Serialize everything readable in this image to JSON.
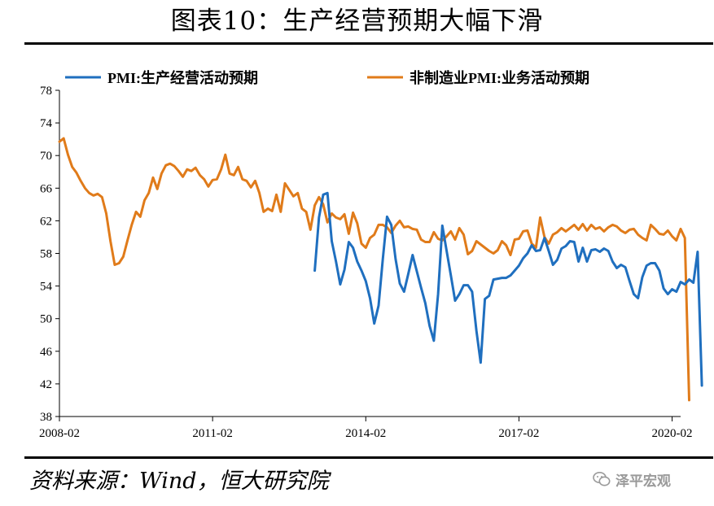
{
  "title": "图表10：生产经营预期大幅下滑",
  "source": "资料来源：Wind，恒大研究院",
  "watermark": "泽平宏观",
  "chart_data": {
    "type": "line",
    "title": "图表10：生产经营预期大幅下滑",
    "xlabel": "",
    "ylabel": "",
    "ylim": [
      38,
      78
    ],
    "yticks": [
      38,
      42,
      46,
      50,
      54,
      58,
      62,
      66,
      70,
      74,
      78
    ],
    "xtick_labels": [
      "2008-02",
      "2011-02",
      "2014-02",
      "2017-02",
      "2020-02"
    ],
    "xtick_index": [
      0,
      36,
      72,
      108,
      144
    ],
    "x_range_months": [
      0,
      146
    ],
    "legend_position": "top",
    "grid": false,
    "series": [
      {
        "name": "PMI:生产经营活动预期",
        "color": "#1f6fbf",
        "start_index": 60,
        "values": [
          55.9,
          62.4,
          65.2,
          65.4,
          59.5,
          57.0,
          54.2,
          56.0,
          59.4,
          58.7,
          57.0,
          55.9,
          54.6,
          52.5,
          49.4,
          51.6,
          57.3,
          62.5,
          61.5,
          57.3,
          54.3,
          53.3,
          55.5,
          57.8,
          55.8,
          53.8,
          51.9,
          49.1,
          47.3,
          53.0,
          61.4,
          58.3,
          55.3,
          52.2,
          53.0,
          54.1,
          54.1,
          53.3,
          48.5,
          44.6,
          52.4,
          52.8,
          54.8,
          54.9,
          55.0,
          55.0,
          55.3,
          55.9,
          56.5,
          57.4,
          58.0,
          59.0,
          58.3,
          58.4,
          59.9,
          58.3,
          56.6,
          57.2,
          58.6,
          58.9,
          59.5,
          59.4,
          57.0,
          58.7,
          57.0,
          58.4,
          58.5,
          58.2,
          58.6,
          58.3,
          57.0,
          56.2,
          56.6,
          56.3,
          54.6,
          53.0,
          52.5,
          55.1,
          56.5,
          56.8,
          56.8,
          55.9,
          53.7,
          53.0,
          53.6,
          53.3,
          54.5,
          54.2,
          54.8,
          54.4,
          58.2,
          41.8
        ]
      },
      {
        "name": "非制造业PMI:业务活动预期",
        "color": "#e07b1a",
        "start_index": 0,
        "values": [
          71.7,
          72.1,
          70.1,
          68.6,
          67.9,
          66.9,
          66.0,
          65.4,
          65.1,
          65.3,
          64.9,
          62.9,
          59.5,
          56.6,
          56.8,
          57.6,
          59.6,
          61.5,
          63.1,
          62.5,
          64.5,
          65.4,
          67.3,
          65.9,
          67.8,
          68.8,
          69.0,
          68.7,
          68.1,
          67.4,
          68.3,
          68.1,
          68.5,
          67.6,
          67.1,
          66.2,
          67.0,
          67.1,
          68.3,
          70.1,
          67.8,
          67.6,
          68.6,
          67.1,
          66.9,
          66.1,
          66.9,
          65.4,
          63.1,
          63.5,
          63.2,
          65.2,
          63.1,
          66.6,
          65.8,
          65.0,
          65.4,
          63.5,
          63.1,
          60.9,
          63.9,
          64.9,
          64.0,
          61.8,
          62.9,
          62.4,
          62.2,
          62.8,
          60.4,
          63.0,
          61.7,
          59.2,
          58.7,
          59.9,
          60.3,
          61.5,
          61.5,
          61.2,
          60.5,
          61.4,
          62.0,
          61.2,
          61.3,
          61.0,
          60.9,
          59.7,
          59.4,
          59.4,
          60.6,
          59.8,
          59.6,
          60.1,
          60.7,
          59.7,
          61.1,
          60.3,
          57.9,
          58.3,
          59.5,
          59.1,
          58.7,
          58.3,
          58.0,
          58.4,
          59.5,
          59.0,
          57.8,
          59.7,
          59.8,
          60.7,
          60.8,
          59.2,
          58.7,
          62.4,
          60.0,
          59.2,
          60.3,
          60.6,
          61.1,
          60.7,
          61.1,
          61.5,
          60.9,
          61.6,
          60.8,
          61.5,
          61.0,
          61.2,
          60.7,
          61.2,
          61.5,
          61.3,
          60.8,
          60.5,
          60.9,
          61.0,
          60.3,
          59.9,
          59.6,
          61.5,
          61.0,
          60.4,
          60.3,
          60.8,
          60.1,
          59.6,
          61.0,
          59.9,
          40.0
        ]
      }
    ]
  }
}
